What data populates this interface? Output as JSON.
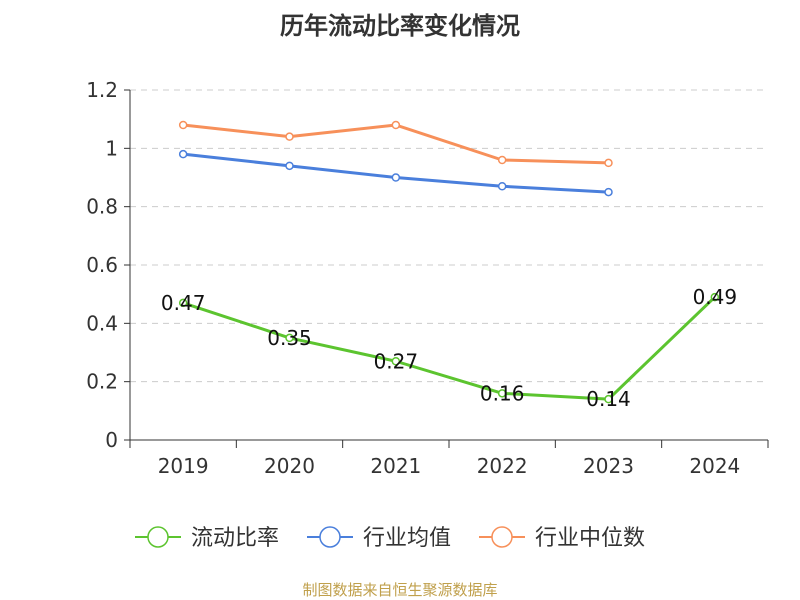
{
  "chart_data": {
    "type": "line",
    "title": "历年流动比率变化情况",
    "categories": [
      "2019",
      "2020",
      "2021",
      "2022",
      "2023",
      "2024"
    ],
    "ylim": [
      0,
      1.2
    ],
    "yticks": [
      "0",
      "0.2",
      "0.4",
      "0.6",
      "0.8",
      "1",
      "1.2"
    ],
    "grid": true,
    "legend_position": "bottom",
    "series": [
      {
        "name": "流动比率",
        "color": "#5cc42f",
        "values": [
          0.47,
          0.35,
          0.27,
          0.16,
          0.14,
          0.49
        ],
        "labels": [
          "0.47",
          "0.35",
          "0.27",
          "0.16",
          "0.14",
          "0.49"
        ]
      },
      {
        "name": "行业均值",
        "color": "#4a7fdc",
        "values": [
          0.98,
          0.94,
          0.9,
          0.87,
          0.85,
          null
        ]
      },
      {
        "name": "行业中位数",
        "color": "#f7905a",
        "values": [
          1.08,
          1.04,
          1.08,
          0.96,
          0.95,
          null
        ]
      }
    ]
  },
  "footer": "制图数据来自恒生聚源数据库"
}
